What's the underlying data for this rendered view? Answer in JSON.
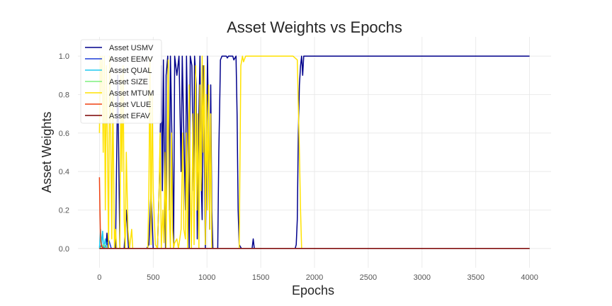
{
  "chart_data": {
    "type": "line",
    "title": "Asset Weights vs Epochs",
    "xlabel": "Epochs",
    "ylabel": "Asset Weights",
    "xlim": [
      -200,
      4200
    ],
    "ylim": [
      -0.1,
      1.1
    ],
    "xticks": [
      0,
      500,
      1000,
      1500,
      2000,
      2500,
      3000,
      3500,
      4000
    ],
    "yticks": [
      0.0,
      0.2,
      0.4,
      0.6,
      0.8,
      1.0
    ],
    "xtick_labels": [
      "0",
      "500",
      "1000",
      "1500",
      "2000",
      "2500",
      "3000",
      "3500",
      "4000"
    ],
    "ytick_labels": [
      "0.0",
      "0.2",
      "0.4",
      "0.6",
      "0.8",
      "1.0"
    ],
    "grid": true,
    "legend_position": "top-left",
    "series": [
      {
        "name": "Asset USMV",
        "color": "#00008b",
        "points": [
          [
            0,
            0
          ],
          [
            60,
            0
          ],
          [
            70,
            0.08
          ],
          [
            80,
            0
          ],
          [
            150,
            0
          ],
          [
            170,
            0.9
          ],
          [
            190,
            0
          ],
          [
            230,
            0
          ],
          [
            250,
            0.2
          ],
          [
            270,
            0
          ],
          [
            440,
            0
          ],
          [
            460,
            0.02
          ],
          [
            480,
            0.3
          ],
          [
            500,
            0
          ],
          [
            540,
            0
          ],
          [
            560,
            0.4
          ],
          [
            575,
            0.95
          ],
          [
            585,
            0.3
          ],
          [
            595,
            0.98
          ],
          [
            605,
            0.4
          ],
          [
            615,
            0
          ],
          [
            620,
            0.9
          ],
          [
            635,
            1
          ],
          [
            650,
            0.2
          ],
          [
            660,
            1
          ],
          [
            680,
            0.4
          ],
          [
            690,
            0
          ],
          [
            700,
            1
          ],
          [
            720,
            0.9
          ],
          [
            740,
            1
          ],
          [
            760,
            0.4
          ],
          [
            770,
            1
          ],
          [
            785,
            0.6
          ],
          [
            800,
            0.2
          ],
          [
            810,
            1
          ],
          [
            825,
            0.5
          ],
          [
            835,
            0
          ],
          [
            845,
            1
          ],
          [
            860,
            0.95
          ],
          [
            875,
            0.3
          ],
          [
            885,
            1
          ],
          [
            900,
            0.85
          ],
          [
            910,
            0.05
          ],
          [
            925,
            0.7
          ],
          [
            935,
            1
          ],
          [
            945,
            0.4
          ],
          [
            955,
            0.15
          ],
          [
            965,
            0.95
          ],
          [
            975,
            0.5
          ],
          [
            985,
            0
          ],
          [
            995,
            0.4
          ],
          [
            1005,
            1
          ],
          [
            1015,
            0.6
          ],
          [
            1025,
            0.1
          ],
          [
            1035,
            0.85
          ],
          [
            1045,
            0.2
          ],
          [
            1055,
            0
          ],
          [
            1100,
            0
          ],
          [
            1110,
            0.5
          ],
          [
            1120,
            0.8
          ],
          [
            1125,
            0.98
          ],
          [
            1140,
            1
          ],
          [
            1180,
            1
          ],
          [
            1190,
            0.99
          ],
          [
            1200,
            1
          ],
          [
            1240,
            1
          ],
          [
            1250,
            0.98
          ],
          [
            1270,
            1
          ],
          [
            1280,
            0.7
          ],
          [
            1290,
            0.2
          ],
          [
            1300,
            0.02
          ],
          [
            1320,
            0
          ],
          [
            1420,
            0
          ],
          [
            1430,
            0.05
          ],
          [
            1440,
            0
          ],
          [
            1820,
            0
          ],
          [
            1830,
            0.02
          ],
          [
            1840,
            0.15
          ],
          [
            1850,
            0.6
          ],
          [
            1860,
            0.85
          ],
          [
            1870,
            0.95
          ],
          [
            1880,
            1
          ],
          [
            1890,
            0.9
          ],
          [
            1900,
            1
          ],
          [
            4000,
            1
          ]
        ]
      },
      {
        "name": "Asset EEMV",
        "color": "#1f3fd8",
        "points": [
          [
            0,
            0
          ],
          [
            20,
            0.02
          ],
          [
            40,
            0
          ],
          [
            90,
            0.04
          ],
          [
            110,
            0
          ],
          [
            4000,
            0
          ]
        ]
      },
      {
        "name": "Asset QUAL",
        "color": "#1ec8f0",
        "points": [
          [
            0,
            0
          ],
          [
            10,
            0.1
          ],
          [
            20,
            0.02
          ],
          [
            30,
            0.09
          ],
          [
            40,
            0
          ],
          [
            55,
            0.05
          ],
          [
            65,
            0
          ],
          [
            4000,
            0
          ]
        ]
      },
      {
        "name": "Asset SIZE",
        "color": "#7ef07e",
        "points": [
          [
            0,
            0
          ],
          [
            40,
            0.02
          ],
          [
            60,
            0
          ],
          [
            4000,
            0
          ]
        ]
      },
      {
        "name": "Asset MTUM",
        "color": "#ffe200",
        "points": [
          [
            0,
            0.6
          ],
          [
            8,
            1
          ],
          [
            15,
            0.8
          ],
          [
            25,
            1
          ],
          [
            35,
            0.5
          ],
          [
            45,
            1
          ],
          [
            55,
            0.2
          ],
          [
            65,
            0.95
          ],
          [
            75,
            0.5
          ],
          [
            85,
            0
          ],
          [
            95,
            1
          ],
          [
            105,
            0.6
          ],
          [
            115,
            0.05
          ],
          [
            125,
            0.8
          ],
          [
            140,
            0
          ],
          [
            150,
            0.1
          ],
          [
            160,
            0
          ],
          [
            190,
            0
          ],
          [
            200,
            0.9
          ],
          [
            210,
            0.4
          ],
          [
            220,
            0.95
          ],
          [
            230,
            0.15
          ],
          [
            240,
            0
          ],
          [
            250,
            0.5
          ],
          [
            265,
            0.1
          ],
          [
            280,
            0
          ],
          [
            300,
            0.1
          ],
          [
            310,
            0
          ],
          [
            450,
            0
          ],
          [
            460,
            0.3
          ],
          [
            470,
            0.99
          ],
          [
            480,
            0.02
          ],
          [
            490,
            0.8
          ],
          [
            500,
            0.3
          ],
          [
            520,
            0.02
          ],
          [
            540,
            0
          ],
          [
            555,
            0.3
          ],
          [
            565,
            0.6
          ],
          [
            575,
            0
          ],
          [
            590,
            0.2
          ],
          [
            600,
            0.03
          ],
          [
            610,
            0.5
          ],
          [
            620,
            0
          ],
          [
            640,
            0.98
          ],
          [
            650,
            0.2
          ],
          [
            660,
            0
          ],
          [
            670,
            0.6
          ],
          [
            680,
            0.1
          ],
          [
            690,
            0
          ],
          [
            700,
            0.03
          ],
          [
            720,
            0.05
          ],
          [
            735,
            0
          ],
          [
            760,
            0.1
          ],
          [
            775,
            0.6
          ],
          [
            785,
            0.1
          ],
          [
            800,
            0.05
          ],
          [
            810,
            0.6
          ],
          [
            820,
            0
          ],
          [
            835,
            0.85
          ],
          [
            845,
            0.3
          ],
          [
            855,
            0
          ],
          [
            870,
            0.7
          ],
          [
            880,
            0.02
          ],
          [
            895,
            0.95
          ],
          [
            905,
            0.2
          ],
          [
            915,
            0.7
          ],
          [
            925,
            0
          ],
          [
            935,
            0.85
          ],
          [
            945,
            0.3
          ],
          [
            955,
            1
          ],
          [
            965,
            0.5
          ],
          [
            975,
            0.95
          ],
          [
            985,
            0.02
          ],
          [
            995,
            0.8
          ],
          [
            1005,
            0.2
          ],
          [
            1015,
            0.85
          ],
          [
            1025,
            0.1
          ],
          [
            1035,
            0.7
          ],
          [
            1045,
            0
          ],
          [
            1300,
            0
          ],
          [
            1315,
            0.95
          ],
          [
            1330,
            1
          ],
          [
            1340,
            0.97
          ],
          [
            1360,
            1
          ],
          [
            1800,
            1
          ],
          [
            1840,
            0.98
          ],
          [
            1860,
            0.5
          ],
          [
            1870,
            0.2
          ],
          [
            1880,
            0
          ],
          [
            4000,
            0
          ]
        ]
      },
      {
        "name": "Asset VLUE",
        "color": "#f04010",
        "points": [
          [
            0,
            0.37
          ],
          [
            5,
            0.2
          ],
          [
            10,
            0.05
          ],
          [
            20,
            0.01
          ],
          [
            40,
            0
          ],
          [
            4000,
            0
          ]
        ]
      },
      {
        "name": "Asset EFAV",
        "color": "#7a0000",
        "points": [
          [
            0,
            0
          ],
          [
            4000,
            0
          ]
        ]
      }
    ]
  }
}
